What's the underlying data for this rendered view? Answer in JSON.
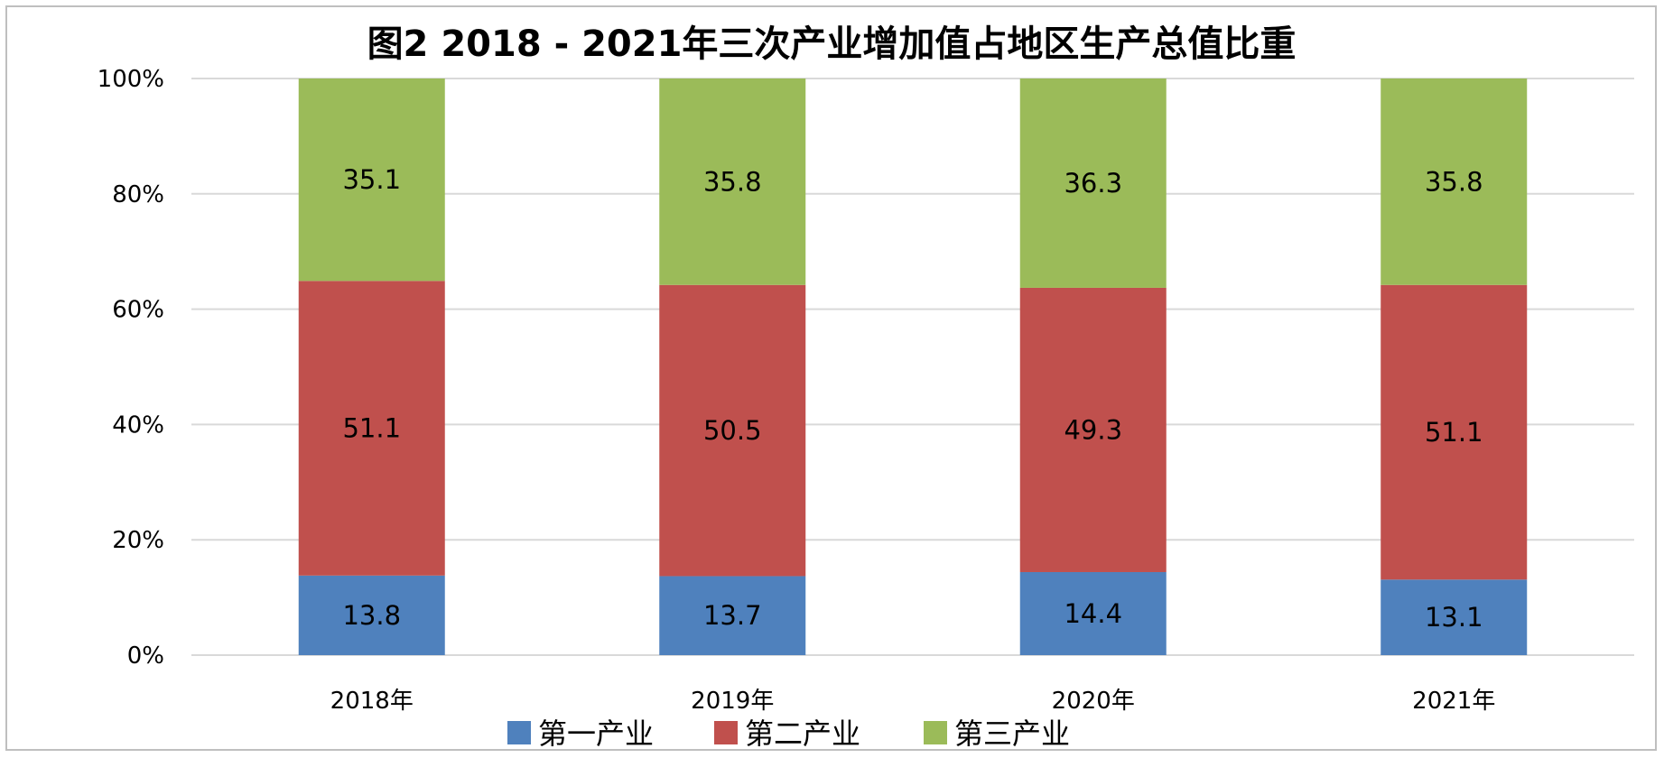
{
  "chart_data": {
    "type": "bar",
    "stacked": true,
    "percent_stacked": true,
    "title": "图2 2018 - 2021年三次产业增加值占地区生产总值比重",
    "categories": [
      "2018年",
      "2019年",
      "2020年",
      "2021年"
    ],
    "series": [
      {
        "name": "第一产业",
        "values": [
          13.8,
          13.7,
          14.4,
          13.1
        ],
        "color": "#4F81BD"
      },
      {
        "name": "第二产业",
        "values": [
          51.1,
          50.5,
          49.3,
          51.1
        ],
        "color": "#C0504D"
      },
      {
        "name": "第三产业",
        "values": [
          35.1,
          35.8,
          36.3,
          35.8
        ],
        "color": "#9BBB59"
      }
    ],
    "y_ticks": [
      "0%",
      "20%",
      "40%",
      "60%",
      "80%",
      "100%"
    ],
    "ylim": [
      0,
      100
    ],
    "grid": true,
    "legend_position": "bottom"
  }
}
